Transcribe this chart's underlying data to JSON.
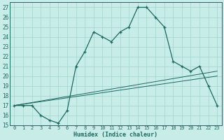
{
  "xlabel": "Humidex (Indice chaleur)",
  "bg_color": "#c8ece8",
  "grid_color": "#a0d4cc",
  "line_color": "#1a6b5a",
  "xlim": [
    -0.5,
    23.5
  ],
  "ylim": [
    15,
    27.5
  ],
  "xticks": [
    0,
    1,
    2,
    3,
    4,
    5,
    6,
    7,
    8,
    9,
    10,
    11,
    12,
    13,
    14,
    15,
    16,
    17,
    18,
    19,
    20,
    21,
    22,
    23
  ],
  "yticks": [
    15,
    16,
    17,
    18,
    19,
    20,
    21,
    22,
    23,
    24,
    25,
    26,
    27
  ],
  "main_curve_x": [
    0,
    1,
    2,
    3,
    4,
    5,
    6,
    7,
    8,
    9,
    10,
    11,
    12,
    13,
    14,
    15,
    16,
    17,
    18,
    19,
    20,
    21,
    22,
    23
  ],
  "main_curve_y": [
    17,
    17,
    17,
    16,
    15.5,
    15.2,
    16.5,
    21,
    22.5,
    24.5,
    24,
    23.5,
    24.5,
    25,
    27,
    27,
    26,
    25,
    21.5,
    21,
    20.5,
    21,
    19,
    17
  ],
  "flat_line_x": [
    0,
    10
  ],
  "flat_line_y": [
    15,
    15
  ],
  "trend1_x": [
    0,
    23
  ],
  "trend1_y": [
    17,
    20.5
  ],
  "trend2_x": [
    0,
    23
  ],
  "trend2_y": [
    17,
    20.0
  ]
}
